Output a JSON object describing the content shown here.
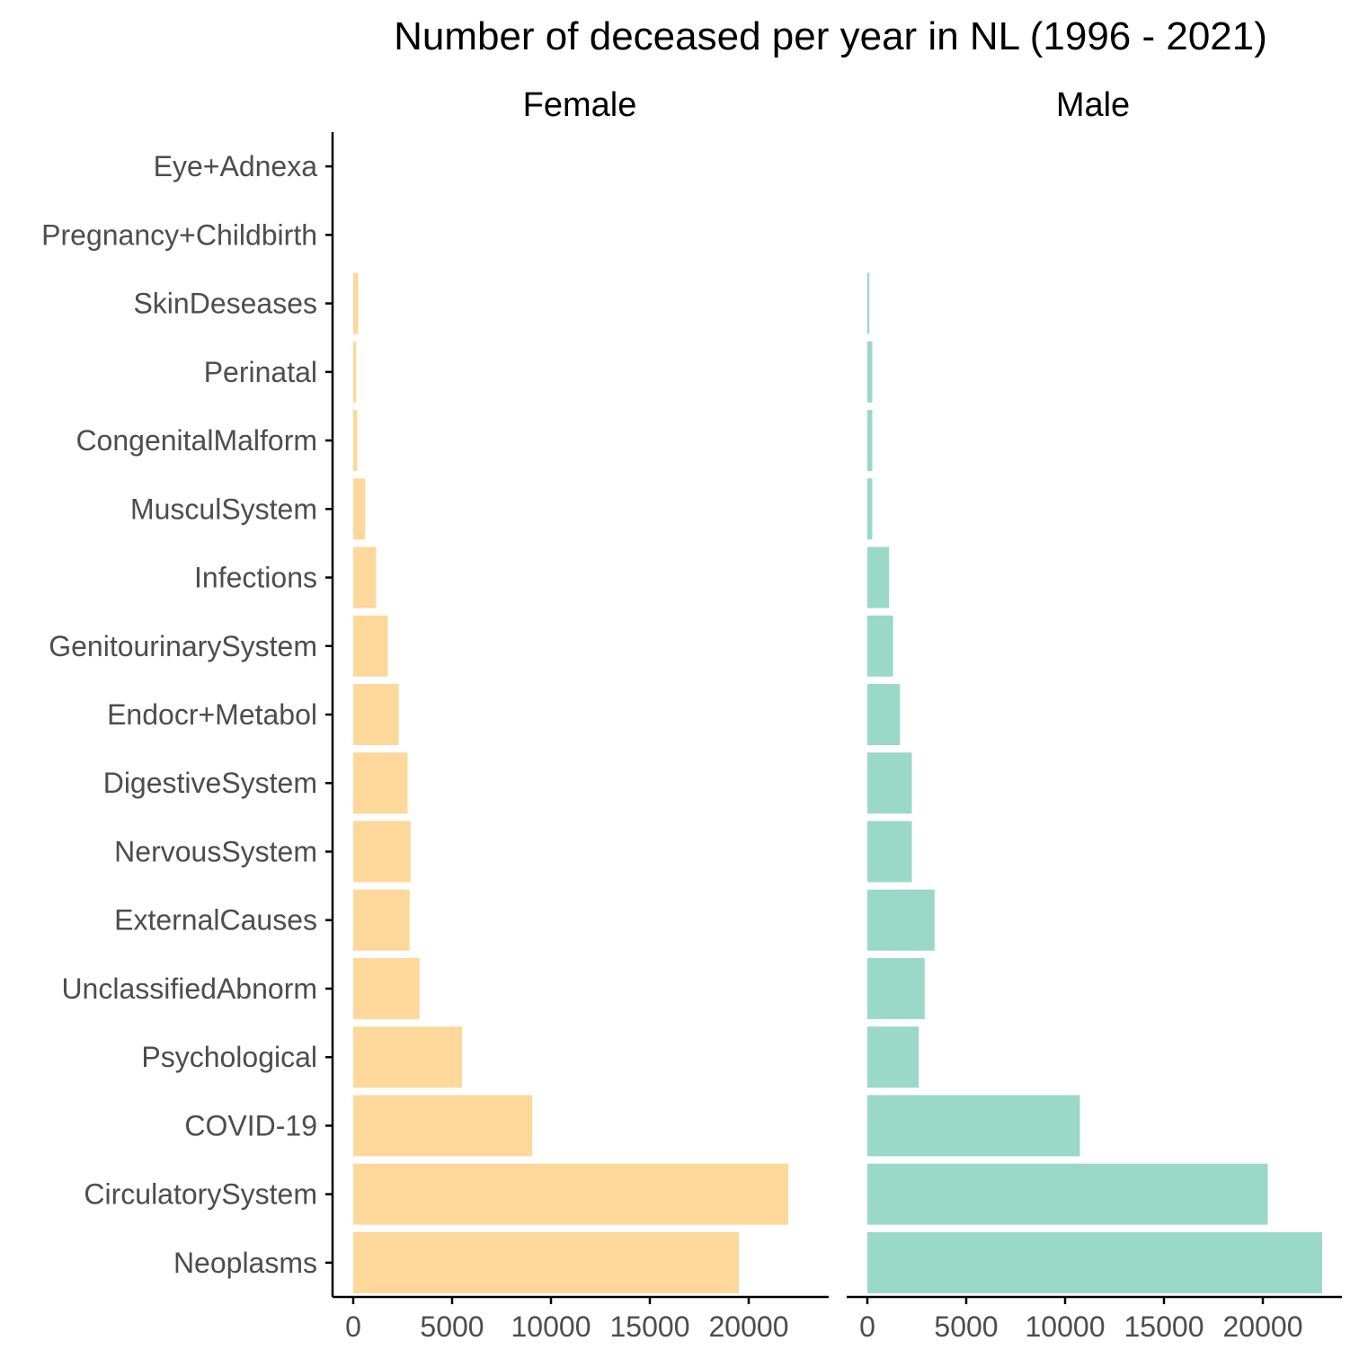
{
  "chart_data": {
    "type": "bar",
    "orientation": "horizontal",
    "title": "Number of deceased per year in NL (1996 - 2021)",
    "xlabel": "",
    "ylabel": "",
    "categories": [
      "Eye+Adnexa",
      "Pregnancy+Childbirth",
      "SkinDeseases",
      "Perinatal",
      "CongenitalMalform",
      "MusculSystem",
      "Infections",
      "GenitourinarySystem",
      "Endocr+Metabol",
      "DigestiveSystem",
      "NervousSystem",
      "ExternalCauses",
      "UnclassifiedAbnorm",
      "Psychological",
      "COVID-19",
      "CirculatorySystem",
      "Neoplasms"
    ],
    "xlim": [
      0,
      23500
    ],
    "xticks": [
      0,
      5000,
      10000,
      15000,
      20000
    ],
    "grid": false,
    "legend": "none",
    "panels": [
      {
        "name": "Female",
        "color": "#FDD89A",
        "values": [
          0,
          0,
          250,
          150,
          200,
          600,
          1150,
          1750,
          2300,
          2750,
          2900,
          2850,
          3350,
          5500,
          9050,
          22000,
          19500
        ]
      },
      {
        "name": "Male",
        "color": "#9AD8C8",
        "values": [
          0,
          0,
          100,
          250,
          250,
          250,
          1100,
          1300,
          1650,
          2250,
          2250,
          3400,
          2900,
          2600,
          10750,
          20250,
          23000
        ]
      }
    ]
  }
}
